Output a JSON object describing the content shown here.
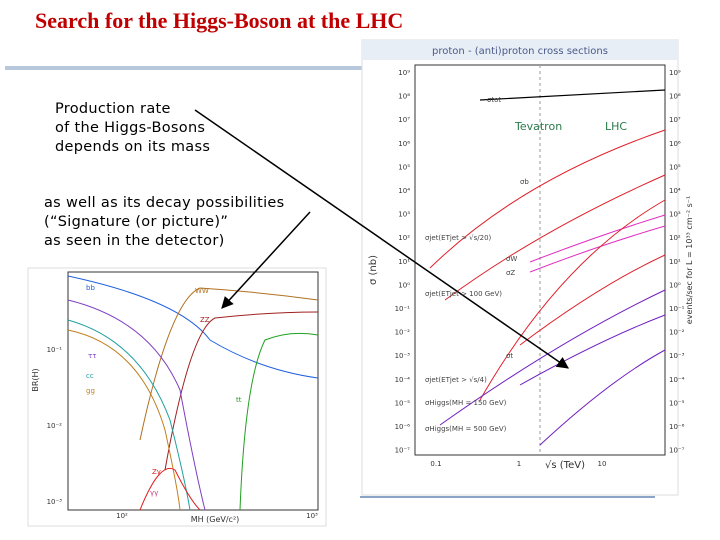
{
  "slide": {
    "title": "Search for the Higgs-Boson at the LHC",
    "text_block_1": [
      "Production rate",
      "of the Higgs-Bosons",
      "depends on its mass"
    ],
    "text_block_2": [
      "as well as its decay possibilities",
      "(“Signature (or picture)”",
      "as seen in the detector)"
    ]
  },
  "cross_section_figure": {
    "title": "proton - (anti)proton cross sections",
    "y_label": "σ (nb)",
    "x_label": "√s  (TeV)",
    "right_label": "events/sec for L = 10³³ cm⁻² s⁻¹",
    "machine_labels": [
      "Tevatron",
      "LHC"
    ],
    "left_ticks": [
      "10⁹",
      "10⁸",
      "10⁷",
      "10⁶",
      "10⁵",
      "10⁴",
      "10³",
      "10²",
      "10¹",
      "10⁰",
      "10⁻¹",
      "10⁻²",
      "10⁻³",
      "10⁻⁴",
      "10⁻⁵",
      "10⁻⁶",
      "10⁻⁷"
    ],
    "right_ticks": [
      "10⁹",
      "10⁸",
      "10⁷",
      "10⁶",
      "10⁵",
      "10⁴",
      "10³",
      "10²",
      "10¹",
      "10⁰",
      "10⁻¹",
      "10⁻²",
      "10⁻³",
      "10⁻⁴",
      "10⁻⁵",
      "10⁻⁶",
      "10⁻⁷"
    ],
    "x_ticks": [
      "0.1",
      "1",
      "10"
    ],
    "curve_labels": [
      "σtot",
      "σb",
      "σjet(ETjet > √s/20)",
      "σW",
      "σZ",
      "σjet(ETjet > 100 GeV)",
      "σt",
      "σjet(ETjet > √s/4)",
      "σHiggs(MH = 150 GeV)",
      "σHiggs(MH = 500 GeV)"
    ]
  },
  "branching_figure": {
    "y_label": "BR(H)",
    "x_label": "MH  (GeV/c²)",
    "y_ticks": [
      "10⁻¹",
      "10⁻²",
      "10⁻³"
    ],
    "x_ticks": [
      "10²",
      "10³"
    ],
    "curve_labels": [
      "bb",
      "WW",
      "ZZ",
      "ττ",
      "cc",
      "gg",
      "tt",
      "Zγ",
      "γγ"
    ]
  }
}
